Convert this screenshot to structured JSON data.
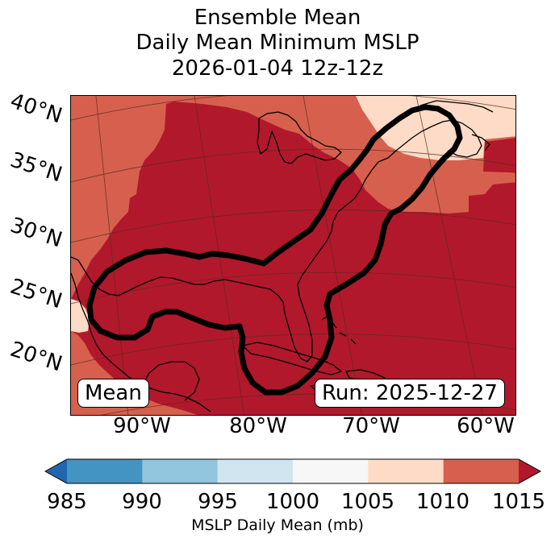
{
  "title": {
    "line1": "Ensemble Mean",
    "line2": "Daily Mean Minimum MSLP",
    "line3": "2026-01-04 12z-12z"
  },
  "map": {
    "lat_labels": [
      "40°N",
      "35°N",
      "30°N",
      "25°N",
      "20°N"
    ],
    "lon_labels": [
      "90°W",
      "80°W",
      "70°W",
      "60°W"
    ],
    "mean_box": "Mean",
    "run_box": "Run: 2025-12-27"
  },
  "colorbar": {
    "ticks": [
      "985",
      "990",
      "995",
      "1000",
      "1005",
      "1010",
      "1015"
    ],
    "label": "MSLP Daily Mean (mb)",
    "colors": [
      "#2166ac",
      "#4393c3",
      "#92c5de",
      "#d1e5f0",
      "#f7f7f7",
      "#fddbc7",
      "#d6604d",
      "#b2182b"
    ]
  }
}
